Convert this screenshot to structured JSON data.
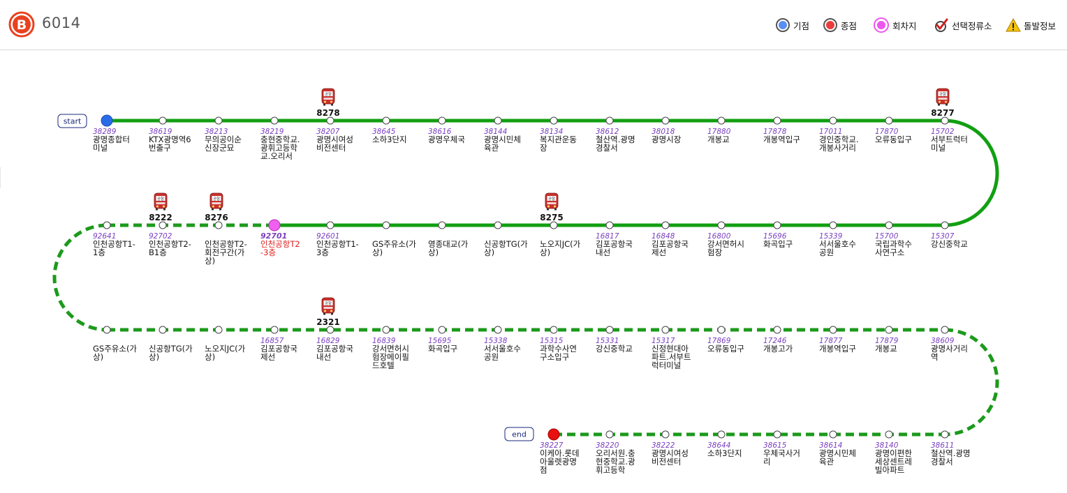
{
  "route": {
    "number": "6014",
    "logo_letter": "B",
    "logo_color": "#e8411f"
  },
  "legend": [
    {
      "label": "기점",
      "icon": "start-point-icon",
      "color": "#3b7cf5"
    },
    {
      "label": "종점",
      "icon": "end-point-icon",
      "color": "#ea3c3c"
    },
    {
      "label": "회차지",
      "icon": "turnaround-icon",
      "color": "#ee55ee"
    },
    {
      "label": "선택정류소",
      "icon": "check-icon",
      "color": "#d02020"
    },
    {
      "label": "돌발정보",
      "icon": "warning-icon",
      "color": "#f0b400"
    }
  ],
  "markers": {
    "start": "start",
    "end": "end"
  },
  "colors": {
    "line_solid": "#119f11",
    "line_dashed": "#1c9a1c",
    "start_node": "#2a6be8",
    "end_node": "#e81010",
    "turnaround_node": "#f060f0",
    "station_id": "#7a3fbf",
    "selected_name": "#e02020"
  },
  "rows": [
    {
      "stops": [
        {
          "id": "38289",
          "name": [
            "광명종합터",
            "미널"
          ],
          "node": "start"
        },
        {
          "id": "38619",
          "name": [
            "KTX광명역6",
            "번출구"
          ]
        },
        {
          "id": "38213",
          "name": [
            "무의공이순",
            "신장군묘"
          ]
        },
        {
          "id": "38219",
          "name": [
            "충현중학교.",
            "광휘고등학",
            "교.오리서"
          ]
        },
        {
          "id": "38207",
          "name": [
            "광명시여성",
            "비전센터"
          ]
        },
        {
          "id": "38645",
          "name": [
            "소하3단지"
          ]
        },
        {
          "id": "38616",
          "name": [
            "광명우체국"
          ]
        },
        {
          "id": "38144",
          "name": [
            "광명시민체",
            "육관"
          ]
        },
        {
          "id": "38134",
          "name": [
            "복지관운동",
            "장"
          ]
        },
        {
          "id": "38612",
          "name": [
            "철산역.광명",
            "경찰서"
          ]
        },
        {
          "id": "38018",
          "name": [
            "광명시장"
          ]
        },
        {
          "id": "17880",
          "name": [
            "개봉교"
          ]
        },
        {
          "id": "17878",
          "name": [
            "개봉역입구"
          ]
        },
        {
          "id": "17011",
          "name": [
            "경인중학교.",
            "개봉사거리"
          ]
        },
        {
          "id": "17870",
          "name": [
            "오류동입구"
          ]
        },
        {
          "id": "15702",
          "name": [
            "서부트럭터",
            "미널"
          ]
        }
      ]
    },
    {
      "stops": [
        {
          "id": "92641",
          "name": [
            "인천공항T1-",
            "1층"
          ]
        },
        {
          "id": "92702",
          "name": [
            "인천공항T2-",
            "B1층"
          ]
        },
        {
          "id": "",
          "name": [
            "인천공항T2-",
            "회전구간(가",
            "상)"
          ]
        },
        {
          "id": "92701",
          "name": [
            "인천공항T2",
            "-3층"
          ],
          "node": "turnaround",
          "selected": true
        },
        {
          "id": "92601",
          "name": [
            "인천공항T1-",
            "3층"
          ]
        },
        {
          "id": "",
          "name": [
            "GS주유소(가",
            "상)"
          ]
        },
        {
          "id": "",
          "name": [
            "영종대교(가",
            "상)"
          ]
        },
        {
          "id": "",
          "name": [
            "신공항TG(가",
            "상)"
          ]
        },
        {
          "id": "",
          "name": [
            "노오지JC(가",
            "상)"
          ]
        },
        {
          "id": "16817",
          "name": [
            "김포공항국",
            "내선"
          ]
        },
        {
          "id": "16848",
          "name": [
            "김포공항국",
            "제선"
          ]
        },
        {
          "id": "16800",
          "name": [
            "강서면허시",
            "험장"
          ]
        },
        {
          "id": "15696",
          "name": [
            "화곡입구"
          ]
        },
        {
          "id": "15339",
          "name": [
            "서서울호수",
            "공원"
          ]
        },
        {
          "id": "15700",
          "name": [
            "국립과학수",
            "사연구소"
          ]
        },
        {
          "id": "15307",
          "name": [
            "강신중학교"
          ]
        }
      ]
    },
    {
      "stops": [
        {
          "id": "",
          "name": [
            "GS주유소(가",
            "상)"
          ]
        },
        {
          "id": "",
          "name": [
            "신공항TG(가",
            "상)"
          ]
        },
        {
          "id": "",
          "name": [
            "노오지JC(가",
            "상)"
          ]
        },
        {
          "id": "16857",
          "name": [
            "김포공항국",
            "제선"
          ]
        },
        {
          "id": "16829",
          "name": [
            "김포공항국",
            "내선"
          ]
        },
        {
          "id": "16839",
          "name": [
            "강서면허시",
            "험장메이필",
            "드호텔"
          ]
        },
        {
          "id": "15695",
          "name": [
            "화곡입구"
          ]
        },
        {
          "id": "15338",
          "name": [
            "서서울호수",
            "공원"
          ]
        },
        {
          "id": "15315",
          "name": [
            "과학수사연",
            "구소입구"
          ]
        },
        {
          "id": "15331",
          "name": [
            "강신중학교"
          ]
        },
        {
          "id": "15317",
          "name": [
            "신정현대아",
            "파트.서부트",
            "럭터미널"
          ]
        },
        {
          "id": "17869",
          "name": [
            "오류동입구"
          ]
        },
        {
          "id": "17246",
          "name": [
            "개봉고가"
          ]
        },
        {
          "id": "17877",
          "name": [
            "개봉역입구"
          ]
        },
        {
          "id": "17879",
          "name": [
            "개봉교"
          ]
        },
        {
          "id": "38609",
          "name": [
            "광명사거리",
            "역"
          ]
        }
      ]
    },
    {
      "stops": [
        {
          "id": "38227",
          "name": [
            "이케아.롯데",
            "아울렛광명",
            "점"
          ],
          "node": "end"
        },
        {
          "id": "38220",
          "name": [
            "오리서원.충",
            "현중학교.광",
            "휘고등학"
          ]
        },
        {
          "id": "38222",
          "name": [
            "광명시여성",
            "비전센터"
          ]
        },
        {
          "id": "38644",
          "name": [
            "소하3단지"
          ]
        },
        {
          "id": "38615",
          "name": [
            "우체국사거",
            "리"
          ]
        },
        {
          "id": "38614",
          "name": [
            "광명시민체",
            "육관"
          ]
        },
        {
          "id": "38140",
          "name": [
            "광명이편한",
            "세상센트레",
            "빌아파트"
          ]
        },
        {
          "id": "38611",
          "name": [
            "철산역.광명",
            "경찰서"
          ]
        }
      ]
    }
  ],
  "buses": [
    {
      "number": "8278",
      "row": 0,
      "stop": 4
    },
    {
      "number": "8277",
      "row": 0,
      "stop": 15
    },
    {
      "number": "8222",
      "row": 1,
      "stop": 1
    },
    {
      "number": "8276",
      "row": 1,
      "stop": 2
    },
    {
      "number": "8275",
      "row": 1,
      "stop": 8
    },
    {
      "number": "2321",
      "row": 2,
      "stop": 4
    }
  ],
  "bus_icon_text": "공항"
}
